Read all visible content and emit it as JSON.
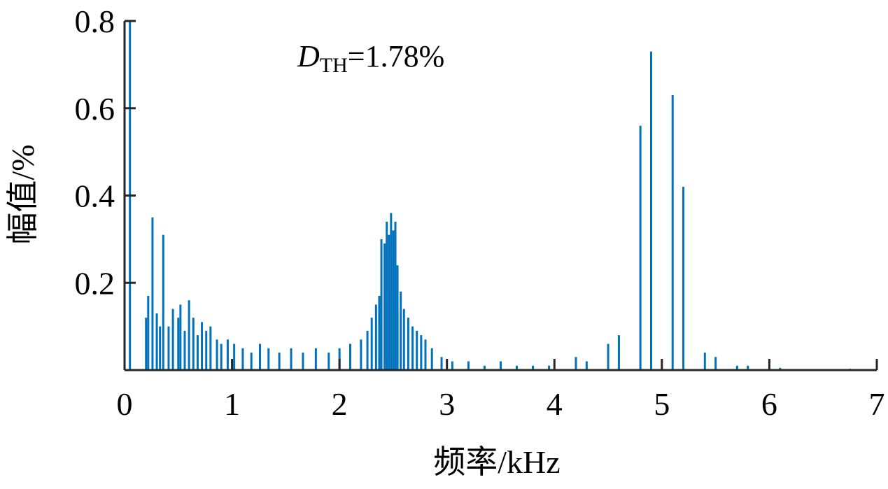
{
  "chart_data": {
    "type": "bar",
    "title": "",
    "xlabel": "频率/kHz",
    "ylabel": "幅值/%",
    "xlim": [
      0,
      7
    ],
    "ylim": [
      0,
      0.8
    ],
    "xticks": [
      0,
      1,
      2,
      3,
      4,
      5,
      6,
      7
    ],
    "xtick_labels": [
      "0",
      "1",
      "2",
      "3",
      "4",
      "5",
      "6",
      "7"
    ],
    "yticks": [
      0.2,
      0.4,
      0.6,
      0.8
    ],
    "ytick_labels": [
      "0.2",
      "0.4",
      "0.6",
      "0.8"
    ],
    "grid": false,
    "annotation": {
      "symbol": "D",
      "subscript": "TH",
      "value_text": "=1.78%"
    },
    "series": [
      {
        "color": "#0072BD",
        "bars": [
          [
            0.05,
            0.8
          ],
          [
            0.26,
            0.35
          ],
          [
            0.36,
            0.31
          ],
          [
            0.2,
            0.12
          ],
          [
            0.22,
            0.17
          ],
          [
            0.3,
            0.13
          ],
          [
            0.33,
            0.1
          ],
          [
            0.41,
            0.1
          ],
          [
            0.45,
            0.14
          ],
          [
            0.5,
            0.12
          ],
          [
            0.52,
            0.15
          ],
          [
            0.56,
            0.09
          ],
          [
            0.6,
            0.16
          ],
          [
            0.64,
            0.12
          ],
          [
            0.68,
            0.08
          ],
          [
            0.72,
            0.11
          ],
          [
            0.76,
            0.09
          ],
          [
            0.8,
            0.1
          ],
          [
            0.86,
            0.07
          ],
          [
            0.9,
            0.06
          ],
          [
            0.96,
            0.07
          ],
          [
            1.02,
            0.06
          ],
          [
            1.1,
            0.05
          ],
          [
            1.18,
            0.04
          ],
          [
            1.26,
            0.06
          ],
          [
            1.34,
            0.05
          ],
          [
            1.44,
            0.04
          ],
          [
            1.55,
            0.05
          ],
          [
            1.66,
            0.04
          ],
          [
            1.78,
            0.05
          ],
          [
            1.9,
            0.04
          ],
          [
            2.0,
            0.05
          ],
          [
            2.1,
            0.06
          ],
          [
            2.2,
            0.07
          ],
          [
            2.26,
            0.09
          ],
          [
            2.3,
            0.12
          ],
          [
            2.34,
            0.15
          ],
          [
            2.37,
            0.17
          ],
          [
            2.39,
            0.3
          ],
          [
            2.42,
            0.29
          ],
          [
            2.44,
            0.34
          ],
          [
            2.46,
            0.31
          ],
          [
            2.48,
            0.36
          ],
          [
            2.5,
            0.32
          ],
          [
            2.52,
            0.34
          ],
          [
            2.54,
            0.24
          ],
          [
            2.57,
            0.18
          ],
          [
            2.6,
            0.14
          ],
          [
            2.64,
            0.12
          ],
          [
            2.68,
            0.1
          ],
          [
            2.72,
            0.09
          ],
          [
            2.76,
            0.08
          ],
          [
            2.8,
            0.07
          ],
          [
            2.86,
            0.05
          ],
          [
            2.95,
            0.03
          ],
          [
            3.05,
            0.02
          ],
          [
            3.2,
            0.02
          ],
          [
            3.35,
            0.01
          ],
          [
            3.5,
            0.02
          ],
          [
            3.65,
            0.01
          ],
          [
            3.8,
            0.01
          ],
          [
            3.95,
            0.01
          ],
          [
            4.2,
            0.03
          ],
          [
            4.3,
            0.02
          ],
          [
            4.5,
            0.06
          ],
          [
            4.6,
            0.08
          ],
          [
            4.8,
            0.56
          ],
          [
            4.9,
            0.73
          ],
          [
            5.1,
            0.63
          ],
          [
            5.2,
            0.42
          ],
          [
            5.4,
            0.04
          ],
          [
            5.5,
            0.03
          ],
          [
            5.7,
            0.01
          ],
          [
            5.8,
            0.01
          ],
          [
            6.1,
            0.005
          ],
          [
            6.75,
            0.003
          ]
        ]
      }
    ]
  }
}
